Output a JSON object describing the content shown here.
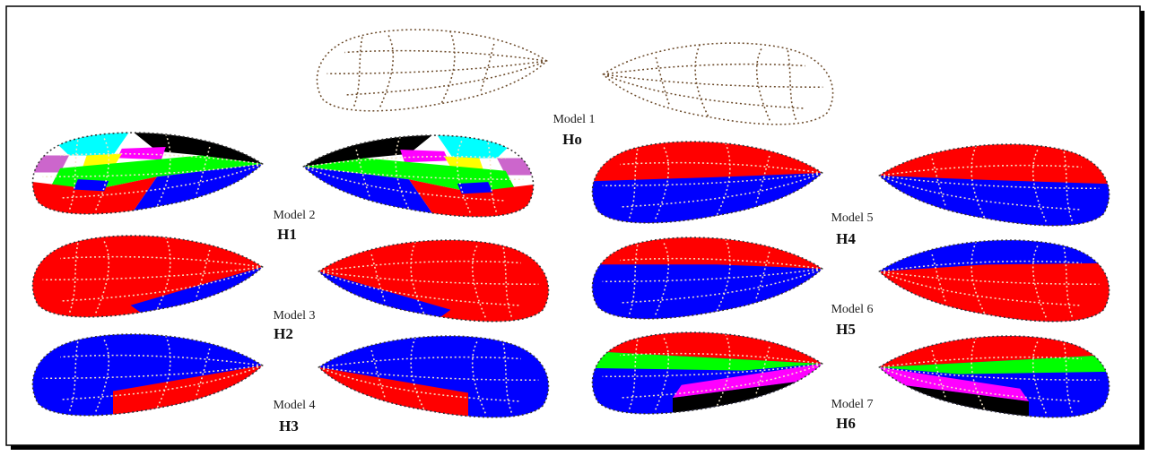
{
  "models": [
    {
      "label": "Model 1",
      "hypothesis": "Ho"
    },
    {
      "label": "Model 2",
      "hypothesis": "H1"
    },
    {
      "label": "Model 3",
      "hypothesis": "H2"
    },
    {
      "label": "Model 4",
      "hypothesis": "H3"
    },
    {
      "label": "Model 5",
      "hypothesis": "H4"
    },
    {
      "label": "Model 6",
      "hypothesis": "H5"
    },
    {
      "label": "Model 7",
      "hypothesis": "H6"
    }
  ]
}
